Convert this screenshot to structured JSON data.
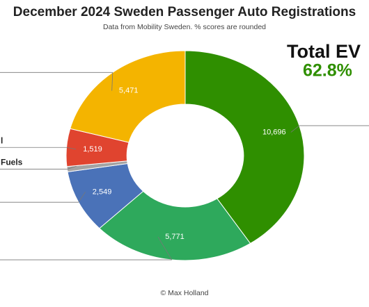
{
  "chart_data": {
    "type": "donut",
    "title": "December 2024 Sweden Passenger Auto Registrations",
    "subtitle": "Data from Mobility Sweden. % scores are rounded",
    "footer": "© Max Holland",
    "total_ev": {
      "label": "Total EV",
      "value": 62.8,
      "value_label": "62.8%"
    },
    "labels": [
      null,
      null,
      null,
      "Fuels",
      "l",
      null
    ],
    "values": [
      10696,
      5771,
      2549,
      215,
      1519,
      5471
    ],
    "value_labels": [
      "10,696",
      "5,771",
      "2,549",
      null,
      "1,519",
      "5,471"
    ],
    "colors": [
      "#2f8f00",
      "#2ea95c",
      "#4a72b8",
      "#a3a3a3",
      "#e0442f",
      "#f4b400"
    ]
  }
}
